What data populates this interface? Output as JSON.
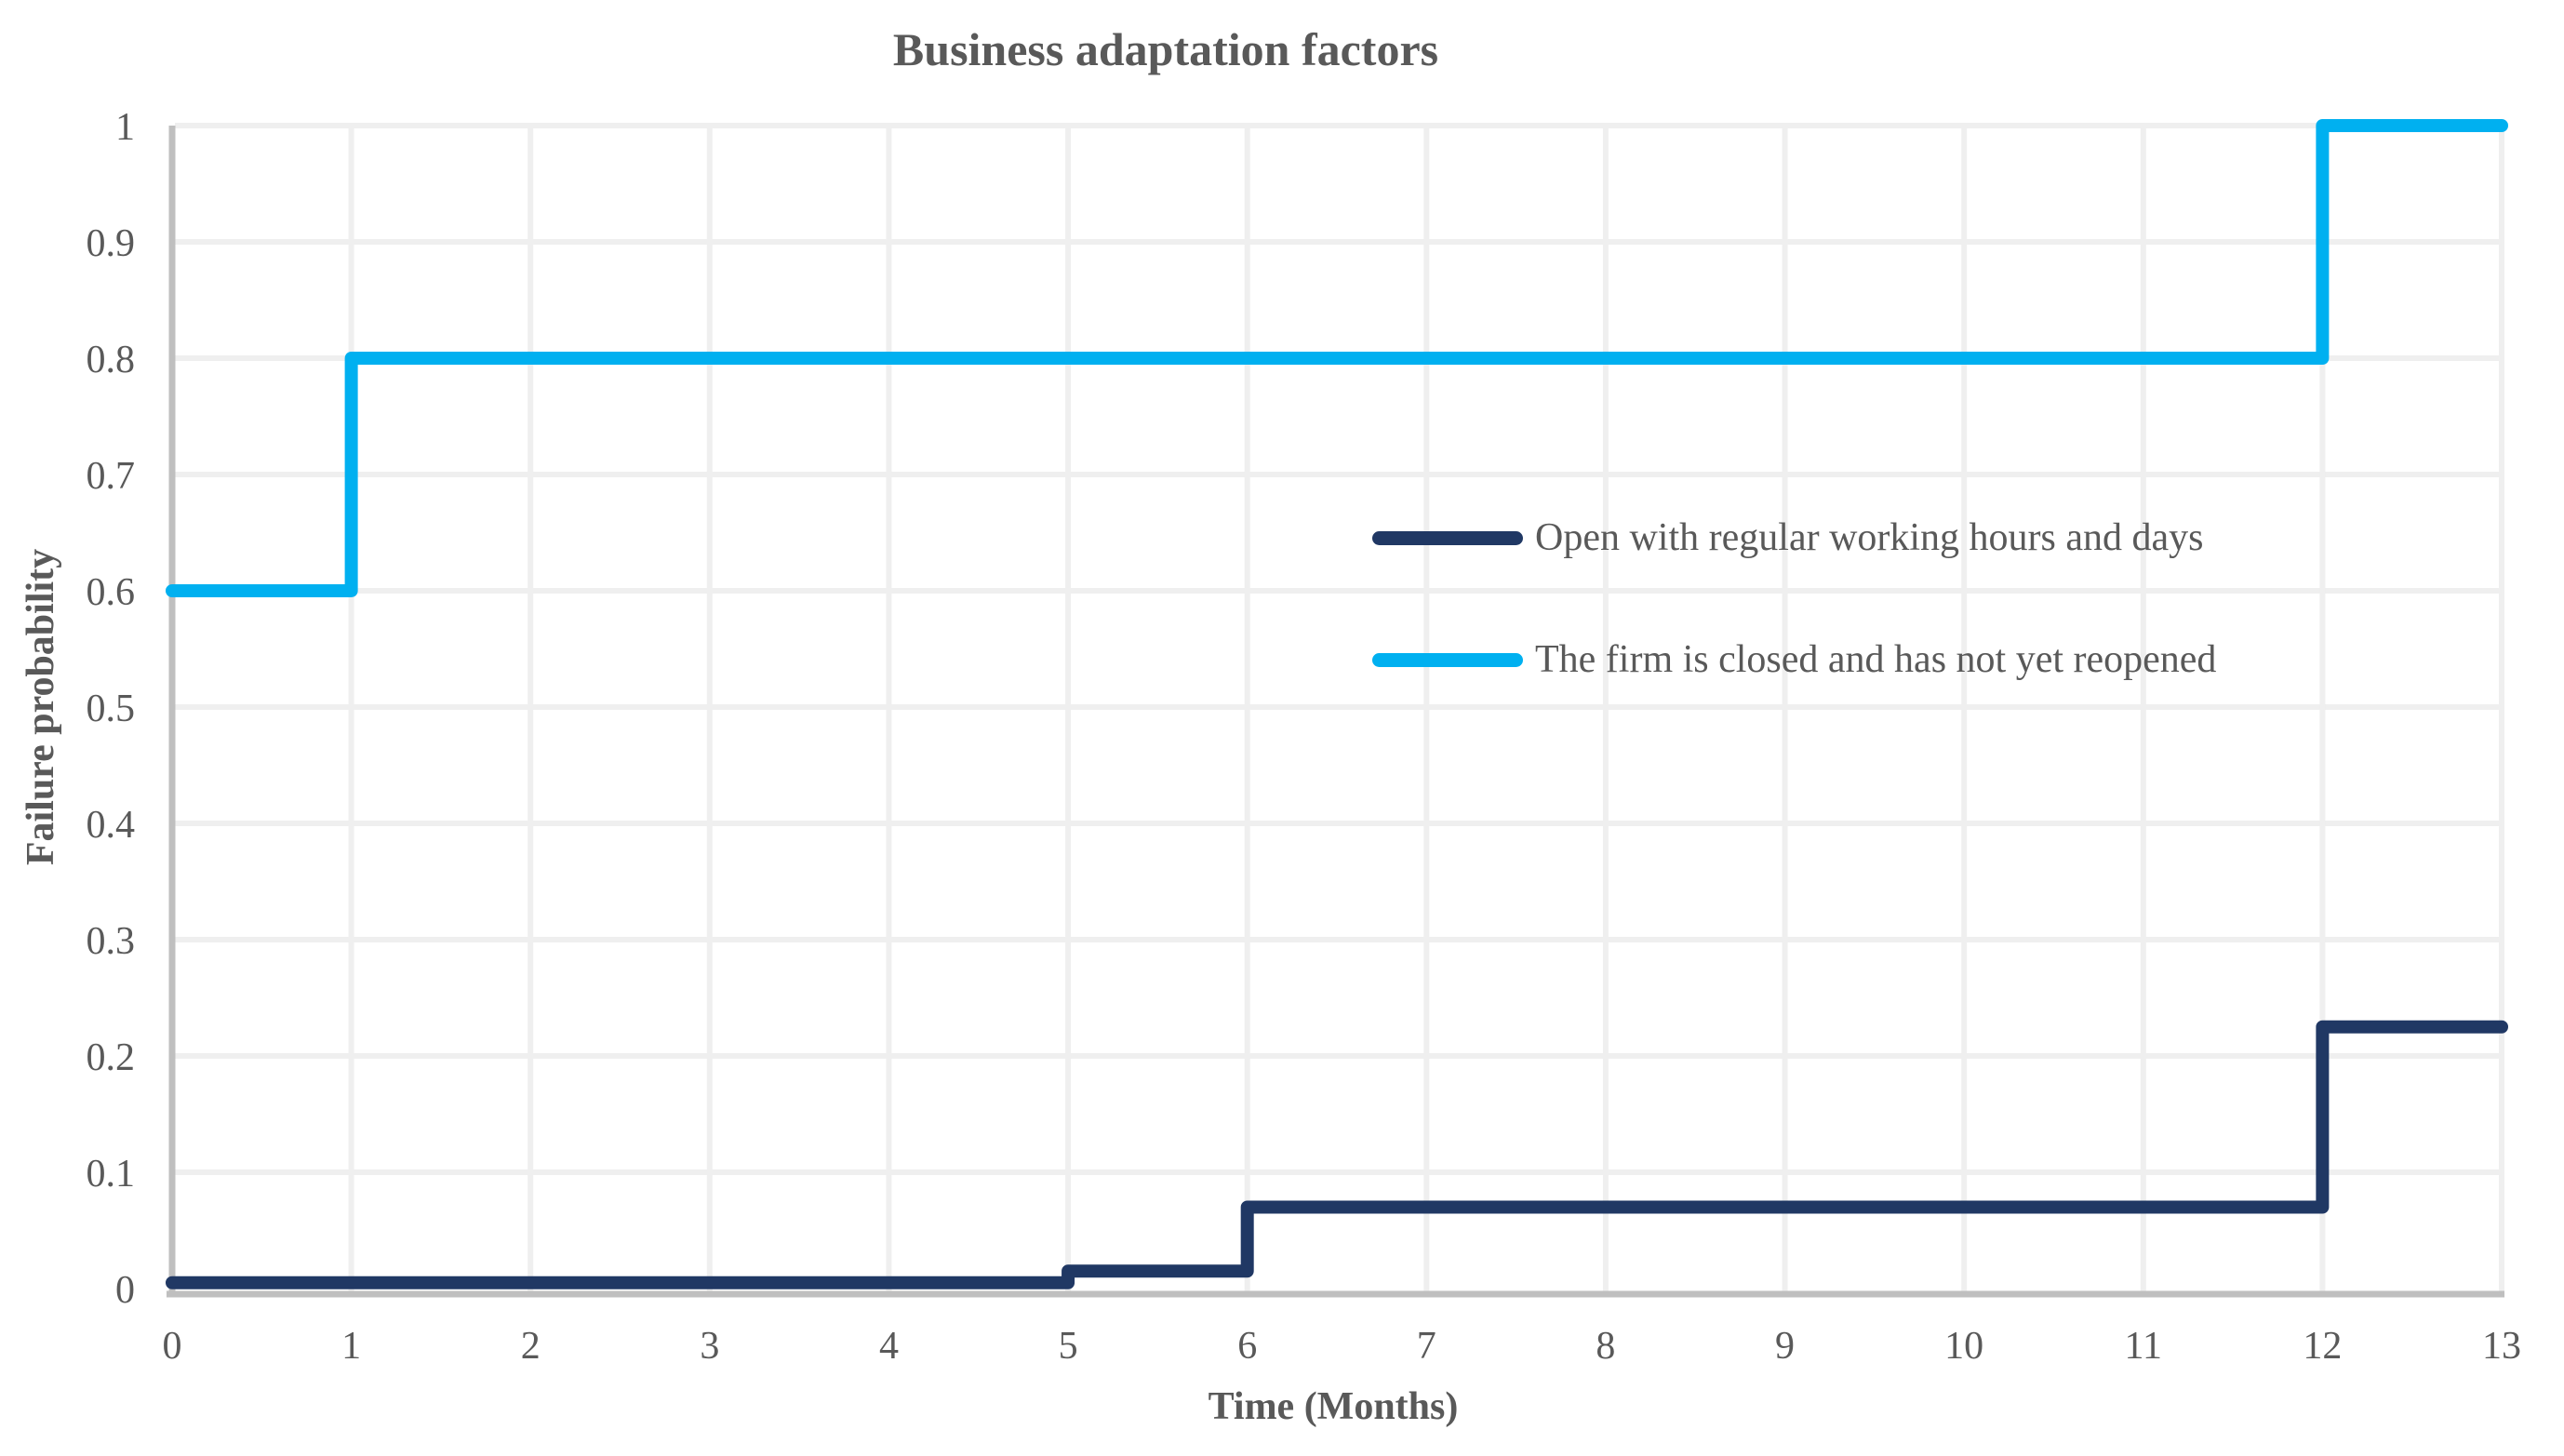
{
  "title": "Business adaptation factors",
  "colors": {
    "text": "#595959",
    "gridline": "#EFEFEF",
    "axis_line": "#BFBFBF",
    "series_open": "#203864",
    "series_closed": "#00B0F0"
  },
  "chart_data": {
    "type": "line",
    "subtype": "step",
    "title": "Business adaptation factors",
    "xlabel": "Time (Months)",
    "ylabel": "Failure probability",
    "xlim": [
      0,
      13
    ],
    "ylim": [
      0,
      1
    ],
    "grid": true,
    "legend_position": "center-right-inside",
    "x_ticks": [
      0,
      1,
      2,
      3,
      4,
      5,
      6,
      7,
      8,
      9,
      10,
      11,
      12,
      13
    ],
    "x_tick_labels": [
      "0",
      "1",
      "2",
      "3",
      "4",
      "5",
      "6",
      "7",
      "8",
      "9",
      "10",
      "11",
      "12",
      "13"
    ],
    "y_ticks": [
      0,
      0.1,
      0.2,
      0.3,
      0.4,
      0.5,
      0.6,
      0.7,
      0.8,
      0.9,
      1
    ],
    "y_tick_labels": [
      "0",
      "0.1",
      "0.2",
      "0.3",
      "0.4",
      "0.5",
      "0.6",
      "0.7",
      "0.8",
      "0.9",
      "1"
    ],
    "series": [
      {
        "name": "Open with regular working hours and days",
        "color": "#203864",
        "steps": [
          [
            0,
            0.005
          ],
          [
            5,
            0.015
          ],
          [
            6,
            0.07
          ],
          [
            12,
            0.225
          ]
        ],
        "end_x": 13
      },
      {
        "name": "The firm is closed and has not yet reopened",
        "color": "#00B0F0",
        "steps": [
          [
            0,
            0.6
          ],
          [
            1,
            0.8
          ],
          [
            12,
            1.0
          ]
        ],
        "end_x": 13
      }
    ]
  }
}
